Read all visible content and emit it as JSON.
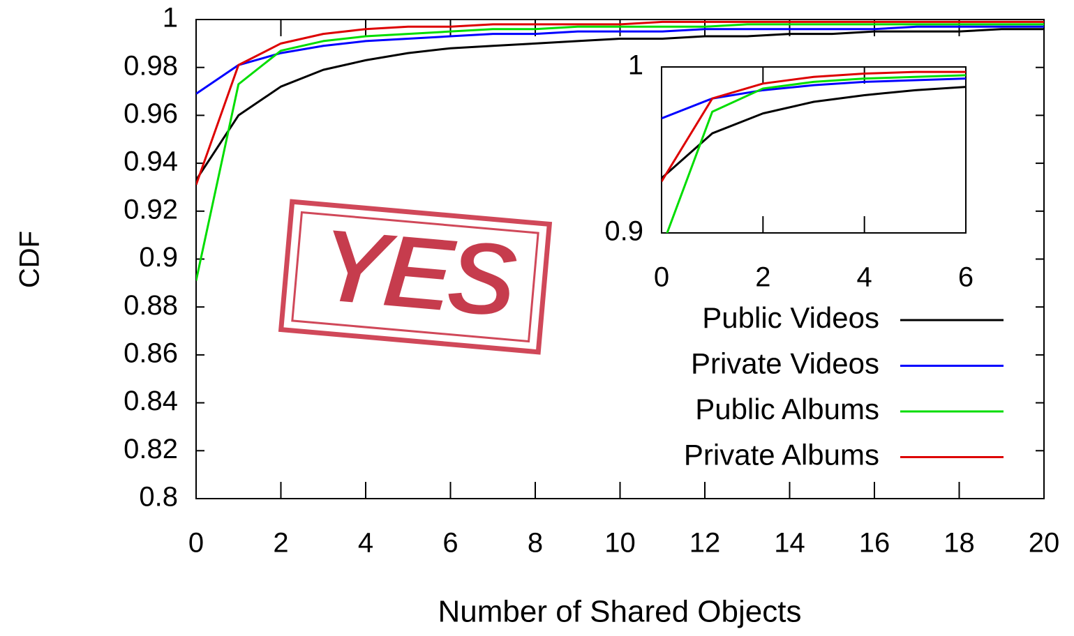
{
  "chart_data": {
    "type": "line",
    "xlabel": "Number of Shared Objects",
    "ylabel": "CDF",
    "x": [
      0,
      1,
      2,
      3,
      4,
      5,
      6,
      7,
      8,
      9,
      10,
      11,
      12,
      13,
      14,
      15,
      16,
      17,
      18,
      19,
      20
    ],
    "series": [
      {
        "name": "Public Videos",
        "color": "#000000",
        "values": [
          0.933,
          0.96,
          0.972,
          0.979,
          0.983,
          0.986,
          0.988,
          0.989,
          0.99,
          0.991,
          0.992,
          0.992,
          0.993,
          0.993,
          0.994,
          0.994,
          0.995,
          0.995,
          0.995,
          0.996,
          0.996
        ]
      },
      {
        "name": "Private Videos",
        "color": "#0000ff",
        "values": [
          0.969,
          0.981,
          0.986,
          0.989,
          0.991,
          0.992,
          0.993,
          0.994,
          0.994,
          0.995,
          0.995,
          0.995,
          0.996,
          0.996,
          0.996,
          0.996,
          0.996,
          0.997,
          0.997,
          0.997,
          0.997
        ]
      },
      {
        "name": "Public Albums",
        "color": "#00dd00",
        "values": [
          0.891,
          0.973,
          0.987,
          0.991,
          0.993,
          0.994,
          0.995,
          0.996,
          0.996,
          0.997,
          0.997,
          0.997,
          0.997,
          0.998,
          0.998,
          0.998,
          0.998,
          0.998,
          0.998,
          0.998,
          0.998
        ]
      },
      {
        "name": "Private Albums",
        "color": "#dd0000",
        "values": [
          0.931,
          0.981,
          0.99,
          0.994,
          0.996,
          0.997,
          0.997,
          0.998,
          0.998,
          0.998,
          0.998,
          0.999,
          0.999,
          0.999,
          0.999,
          0.999,
          0.999,
          0.999,
          0.999,
          0.999,
          0.999
        ]
      }
    ],
    "xlim": [
      0,
      20
    ],
    "xticks": [
      0,
      2,
      4,
      6,
      8,
      10,
      12,
      14,
      16,
      18,
      20
    ],
    "ylim": [
      0.8,
      1
    ],
    "yticks": [
      0.8,
      0.82,
      0.84,
      0.86,
      0.88,
      0.9,
      0.92,
      0.94,
      0.96,
      0.98,
      1
    ],
    "grid": false,
    "legend": "lower right",
    "inset": {
      "xlim": [
        0,
        6
      ],
      "xticks": [
        0,
        2,
        4,
        6
      ],
      "ylim": [
        0.9,
        1
      ],
      "yticks": [
        0.9,
        1
      ]
    }
  },
  "stamp": {
    "text": "YES"
  }
}
